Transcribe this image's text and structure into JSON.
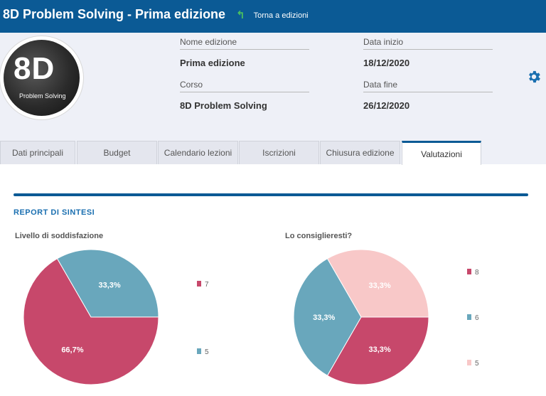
{
  "topbar": {
    "title": "8D Problem Solving - Prima edizione",
    "back_label": "Torna a edizioni"
  },
  "avatar": {
    "big_text": "8D",
    "small_text": "Problem Solving"
  },
  "fields": {
    "nome_label": "Nome edizione",
    "nome_value": "Prima edizione",
    "data_inizio_label": "Data inizio",
    "data_inizio_value": "18/12/2020",
    "corso_label": "Corso",
    "corso_value": "8D Problem Solving",
    "data_fine_label": "Data fine",
    "data_fine_value": "26/12/2020"
  },
  "tabs": [
    "Dati principali",
    "Budget",
    "Calendario lezioni",
    "Iscrizioni",
    "Chiusura edizione",
    "Valutazioni"
  ],
  "active_tab": "Valutazioni",
  "report": {
    "section_title": "REPORT DI SINTESI"
  },
  "colors": {
    "primary": "#0b5a95",
    "crimson": "#c7486b",
    "teal": "#69a7bc",
    "pink": "#f8c8c8"
  },
  "icons": {
    "back": "back-arrow-icon",
    "settings": "gear-icon"
  },
  "chart_data": [
    {
      "type": "pie",
      "title": "Livello di soddisfazione",
      "slices": [
        {
          "label": "7",
          "value": 66.7,
          "display": "66,7%",
          "color": "#c7486b"
        },
        {
          "label": "5",
          "value": 33.3,
          "display": "33,3%",
          "color": "#69a7bc"
        }
      ],
      "legend": [
        "7",
        "5"
      ]
    },
    {
      "type": "pie",
      "title": "Lo consiglieresti?",
      "slices": [
        {
          "label": "8",
          "value": 33.3,
          "display": "33,3%",
          "color": "#c7486b"
        },
        {
          "label": "6",
          "value": 33.3,
          "display": "33,3%",
          "color": "#69a7bc"
        },
        {
          "label": "5",
          "value": 33.3,
          "display": "33,3%",
          "color": "#f8c8c8"
        }
      ],
      "legend": [
        "8",
        "6",
        "5"
      ]
    }
  ]
}
